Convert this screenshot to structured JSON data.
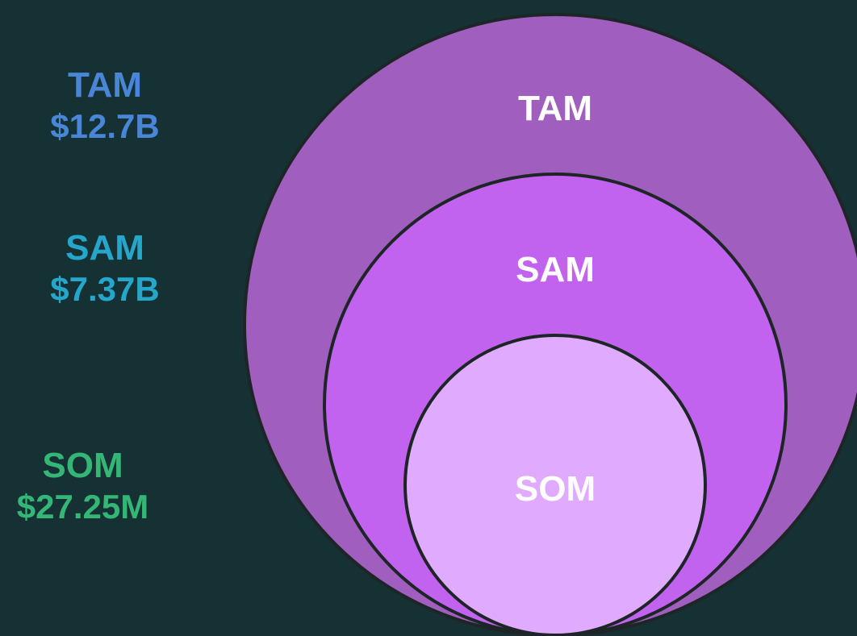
{
  "colors": {
    "background": "#163133",
    "tam_fill": "#a05fbf",
    "sam_fill": "#c163ee",
    "som_fill": "#e0aaff",
    "outline": "#1e2526",
    "tam_label": "#4a86d8",
    "sam_label": "#25a7cc",
    "som_label": "#34b676",
    "circle_text": "#ffffff"
  },
  "legend": {
    "tam": {
      "label": "TAM",
      "value": "$12.7B"
    },
    "sam": {
      "label": "SAM",
      "value": "$7.37B"
    },
    "som": {
      "label": "SOM",
      "value": "$27.25M"
    }
  },
  "circles": {
    "tam": {
      "label": "TAM"
    },
    "sam": {
      "label": "SAM"
    },
    "som": {
      "label": "SOM"
    }
  }
}
